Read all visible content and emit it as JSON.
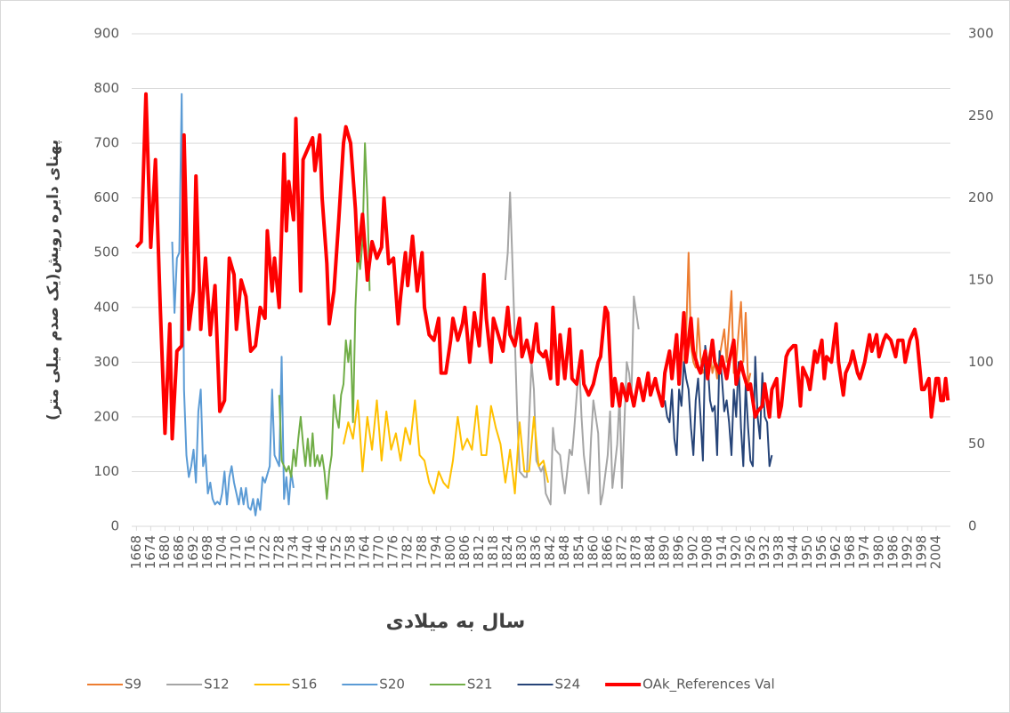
{
  "chart_data": {
    "type": "line",
    "x_label": "سال به میلادی",
    "y_label": "پهنای دایره رویش(یک صدم میلی متر)",
    "xlim": [
      1666,
      2010
    ],
    "xticks": [
      1668,
      1674,
      1680,
      1686,
      1692,
      1698,
      1704,
      1710,
      1716,
      1722,
      1728,
      1734,
      1740,
      1746,
      1752,
      1758,
      1764,
      1770,
      1776,
      1782,
      1788,
      1794,
      1800,
      1806,
      1812,
      1818,
      1824,
      1830,
      1836,
      1842,
      1848,
      1854,
      1860,
      1866,
      1872,
      1878,
      1884,
      1890,
      1896,
      1902,
      1908,
      1914,
      1920,
      1926,
      1932,
      1938,
      1944,
      1950,
      1956,
      1962,
      1968,
      1974,
      1980,
      1986,
      1992,
      1998,
      2004
    ],
    "ylim": [
      0,
      900
    ],
    "yticks": [
      0,
      100,
      200,
      300,
      400,
      500,
      600,
      700,
      800,
      900
    ],
    "y2lim": [
      0,
      300
    ],
    "y2ticks": [
      0,
      50,
      100,
      150,
      200,
      250,
      300
    ],
    "grid": true,
    "legend": "bottom",
    "series": [
      {
        "name": "S9",
        "color": "#ed7d31",
        "x": [
          1898,
          1899,
          1900,
          1901,
          1902,
          1903,
          1904,
          1905,
          1906,
          1908,
          1909,
          1910,
          1911,
          1912,
          1913,
          1915,
          1916,
          1918,
          1919,
          1920,
          1922,
          1923,
          1924,
          1925,
          1926
        ],
        "values": [
          300,
          350,
          500,
          330,
          300,
          290,
          380,
          310,
          280,
          300,
          320,
          280,
          300,
          270,
          310,
          360,
          300,
          430,
          280,
          300,
          410,
          300,
          390,
          260,
          280
        ]
      },
      {
        "name": "S12",
        "color": "#a5a5a5",
        "x": [
          1823,
          1824,
          1825,
          1826,
          1828,
          1829,
          1831,
          1832,
          1834,
          1835,
          1836,
          1838,
          1839,
          1840,
          1842,
          1843,
          1844,
          1846,
          1847,
          1848,
          1850,
          1851,
          1852,
          1854,
          1855,
          1856,
          1858,
          1859,
          1860,
          1862,
          1863,
          1864,
          1866,
          1867,
          1868,
          1870,
          1871,
          1872,
          1874,
          1875,
          1876,
          1877,
          1879
        ],
        "values": [
          450,
          500,
          610,
          480,
          200,
          100,
          90,
          90,
          300,
          250,
          120,
          100,
          110,
          60,
          40,
          180,
          140,
          130,
          90,
          60,
          140,
          130,
          180,
          300,
          200,
          130,
          60,
          160,
          230,
          170,
          40,
          60,
          130,
          210,
          70,
          150,
          240,
          70,
          300,
          280,
          240,
          420,
          360
        ]
      },
      {
        "name": "S16",
        "color": "#ffc000",
        "x": [
          1755,
          1757,
          1759,
          1761,
          1763,
          1765,
          1767,
          1769,
          1771,
          1773,
          1775,
          1777,
          1779,
          1781,
          1783,
          1785,
          1787,
          1789,
          1791,
          1793,
          1795,
          1797,
          1799,
          1801,
          1803,
          1805,
          1807,
          1809,
          1811,
          1813,
          1815,
          1817,
          1819,
          1821,
          1823,
          1825,
          1827,
          1829,
          1831,
          1833,
          1835,
          1837,
          1839,
          1841
        ],
        "values": [
          150,
          190,
          160,
          230,
          100,
          200,
          140,
          230,
          120,
          210,
          140,
          170,
          120,
          180,
          150,
          230,
          130,
          120,
          80,
          60,
          100,
          80,
          70,
          120,
          200,
          140,
          160,
          140,
          220,
          130,
          130,
          220,
          180,
          150,
          80,
          140,
          60,
          190,
          100,
          100,
          200,
          110,
          120,
          80
        ]
      },
      {
        "name": "S20",
        "color": "#5b9bd5",
        "x": [
          1683,
          1684,
          1685,
          1686,
          1687,
          1688,
          1689,
          1690,
          1691,
          1692,
          1693,
          1694,
          1695,
          1696,
          1697,
          1698,
          1699,
          1700,
          1701,
          1702,
          1703,
          1704,
          1705,
          1706,
          1707,
          1708,
          1709,
          1710,
          1711,
          1712,
          1713,
          1714,
          1715,
          1716,
          1717,
          1718,
          1719,
          1720,
          1721,
          1722,
          1724,
          1725,
          1726,
          1728,
          1729,
          1730,
          1731,
          1732,
          1733,
          1734
        ],
        "values": [
          520,
          390,
          490,
          500,
          790,
          250,
          130,
          90,
          110,
          140,
          80,
          210,
          250,
          110,
          130,
          60,
          80,
          50,
          40,
          45,
          40,
          60,
          100,
          40,
          90,
          110,
          80,
          60,
          40,
          70,
          40,
          70,
          35,
          30,
          50,
          20,
          50,
          30,
          90,
          80,
          110,
          250,
          130,
          110,
          310,
          50,
          90,
          40,
          100,
          70
        ]
      },
      {
        "name": "S21",
        "color": "#70ad47",
        "x": [
          1728,
          1729,
          1730,
          1731,
          1732,
          1733,
          1734,
          1735,
          1736,
          1737,
          1738,
          1739,
          1740,
          1741,
          1742,
          1743,
          1744,
          1745,
          1746,
          1747,
          1748,
          1749,
          1750,
          1751,
          1752,
          1753,
          1754,
          1755,
          1756,
          1757,
          1758,
          1759,
          1760,
          1761,
          1762,
          1763,
          1764,
          1765,
          1766
        ],
        "values": [
          240,
          120,
          110,
          100,
          110,
          90,
          140,
          110,
          160,
          200,
          150,
          110,
          160,
          110,
          170,
          110,
          130,
          110,
          130,
          100,
          50,
          100,
          130,
          240,
          200,
          180,
          240,
          260,
          340,
          300,
          340,
          190,
          400,
          500,
          470,
          520,
          700,
          600,
          430
        ]
      },
      {
        "name": "S24",
        "color": "#264478",
        "x": [
          1890,
          1891,
          1892,
          1893,
          1894,
          1895,
          1896,
          1897,
          1898,
          1899,
          1900,
          1901,
          1902,
          1903,
          1904,
          1905,
          1906,
          1907,
          1908,
          1909,
          1910,
          1911,
          1912,
          1913,
          1914,
          1915,
          1916,
          1917,
          1918,
          1919,
          1920,
          1921,
          1922,
          1923,
          1924,
          1925,
          1926,
          1927,
          1928,
          1929,
          1930,
          1931,
          1932,
          1933,
          1934,
          1935
        ],
        "values": [
          230,
          200,
          190,
          250,
          160,
          130,
          250,
          220,
          300,
          270,
          250,
          180,
          130,
          230,
          270,
          200,
          120,
          330,
          300,
          230,
          210,
          220,
          130,
          320,
          270,
          210,
          230,
          190,
          130,
          250,
          200,
          300,
          180,
          110,
          260,
          180,
          120,
          110,
          310,
          200,
          160,
          280,
          200,
          190,
          110,
          130
        ]
      },
      {
        "name": "OAk_References Val",
        "color": "#ff0000",
        "width": 4,
        "x": [
          1668,
          1670,
          1672,
          1674,
          1676,
          1678,
          1680,
          1682,
          1683,
          1685,
          1687,
          1688,
          1690,
          1692,
          1693,
          1695,
          1697,
          1699,
          1701,
          1703,
          1705,
          1707,
          1709,
          1710,
          1712,
          1714,
          1716,
          1718,
          1720,
          1722,
          1723,
          1725,
          1726,
          1728,
          1730,
          1731,
          1732,
          1734,
          1735,
          1737,
          1738,
          1740,
          1742,
          1743,
          1745,
          1746,
          1748,
          1749,
          1751,
          1753,
          1755,
          1756,
          1758,
          1760,
          1761,
          1763,
          1765,
          1767,
          1769,
          1771,
          1772,
          1774,
          1776,
          1778,
          1779,
          1781,
          1782,
          1784,
          1786,
          1788,
          1789,
          1791,
          1793,
          1795,
          1796,
          1798,
          1800,
          1801,
          1803,
          1805,
          1806,
          1808,
          1810,
          1812,
          1814,
          1815,
          1817,
          1818,
          1820,
          1822,
          1824,
          1825,
          1827,
          1829,
          1830,
          1832,
          1834,
          1836,
          1837,
          1839,
          1840,
          1842,
          1843,
          1845,
          1846,
          1848,
          1850,
          1851,
          1853,
          1855,
          1856,
          1858,
          1860,
          1862,
          1863,
          1865,
          1866,
          1868,
          1869,
          1871,
          1872,
          1874,
          1875,
          1877,
          1879,
          1881,
          1883,
          1884,
          1886,
          1887,
          1889,
          1890,
          1892,
          1893,
          1895,
          1896,
          1898,
          1899,
          1901,
          1902,
          1904,
          1905,
          1907,
          1908,
          1910,
          1911,
          1913,
          1914,
          1916,
          1917,
          1919,
          1920,
          1922,
          1923,
          1925,
          1926,
          1928,
          1929,
          1931,
          1932,
          1934,
          1935,
          1937,
          1938,
          1939,
          1941,
          1942,
          1944,
          1945,
          1947,
          1948,
          1950,
          1951,
          1953,
          1954,
          1956,
          1957,
          1958,
          1960,
          1962,
          1963,
          1965,
          1966,
          1968,
          1969,
          1971,
          1972,
          1974,
          1976,
          1977,
          1979,
          1980,
          1982,
          1983,
          1985,
          1987,
          1988,
          1990,
          1991,
          1993,
          1995,
          1996,
          1998,
          1999,
          2001,
          2002,
          2004,
          2005,
          2006,
          2007,
          2008,
          2009
        ],
        "values": [
          510,
          520,
          790,
          510,
          670,
          400,
          170,
          370,
          160,
          320,
          330,
          715,
          360,
          430,
          640,
          360,
          490,
          350,
          440,
          210,
          230,
          490,
          460,
          360,
          450,
          420,
          320,
          330,
          400,
          380,
          540,
          430,
          490,
          400,
          680,
          540,
          630,
          560,
          745,
          430,
          670,
          690,
          710,
          650,
          715,
          600,
          480,
          370,
          430,
          560,
          700,
          730,
          700,
          580,
          485,
          570,
          450,
          520,
          490,
          510,
          600,
          480,
          490,
          370,
          420,
          500,
          440,
          530,
          430,
          500,
          400,
          350,
          340,
          380,
          280,
          280,
          340,
          380,
          340,
          370,
          400,
          300,
          390,
          330,
          460,
          380,
          300,
          380,
          350,
          320,
          400,
          350,
          330,
          380,
          310,
          340,
          300,
          370,
          320,
          310,
          320,
          270,
          400,
          260,
          350,
          270,
          360,
          270,
          260,
          320,
          260,
          240,
          260,
          300,
          310,
          400,
          390,
          220,
          270,
          220,
          260,
          230,
          260,
          220,
          270,
          230,
          280,
          240,
          270,
          250,
          220,
          280,
          320,
          270,
          350,
          260,
          390,
          300,
          380,
          320,
          290,
          280,
          320,
          270,
          340,
          300,
          280,
          310,
          270,
          300,
          340,
          260,
          300,
          280,
          250,
          260,
          200,
          210,
          220,
          260,
          200,
          250,
          270,
          200,
          220,
          310,
          320,
          330,
          330,
          220,
          290,
          270,
          250,
          320,
          300,
          340,
          270,
          310,
          300,
          370,
          300,
          240,
          280,
          300,
          320,
          280,
          270,
          300,
          350,
          320,
          350,
          310,
          340,
          350,
          340,
          310,
          340,
          340,
          300,
          340,
          360,
          340,
          250,
          250,
          270,
          200,
          270,
          270,
          230,
          230,
          270,
          230
        ]
      }
    ]
  }
}
